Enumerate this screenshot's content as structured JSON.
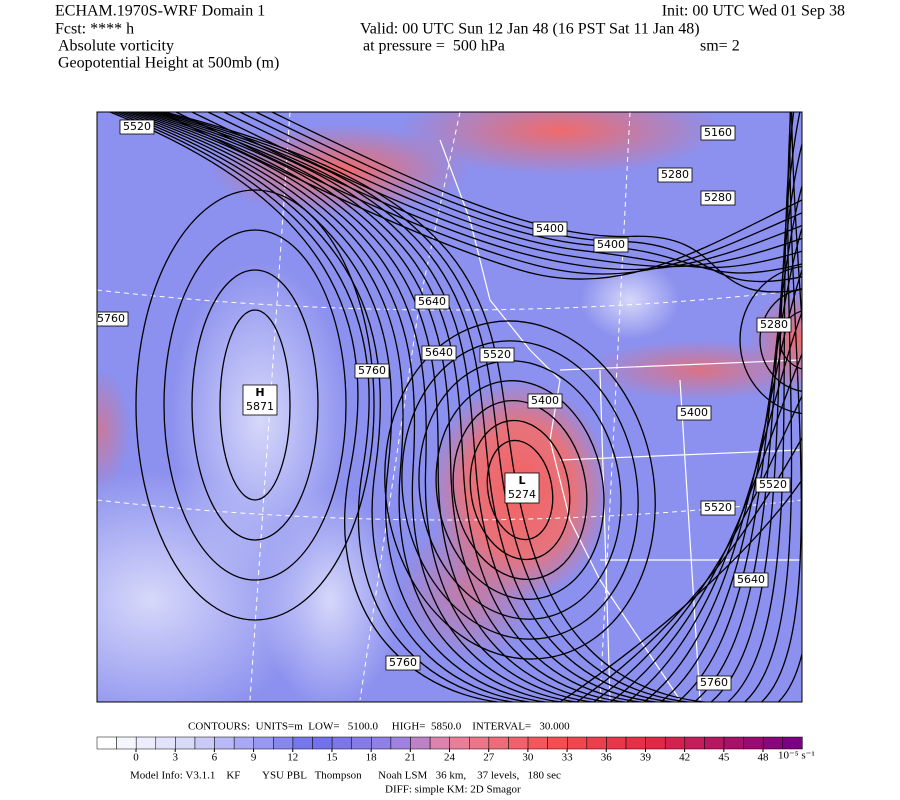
{
  "header": {
    "model": "ECHAM.1970S-WRF Domain 1",
    "forecast": "Fcst: **** h",
    "field1": "Absolute vorticity",
    "field2": "Geopotential Height at 500mb (m)",
    "init": "Init: 00 UTC Wed 01 Sep 38",
    "valid": "Valid: 00 UTC Sun 12 Jan 48 (16 PST Sat 11 Jan 48)",
    "pressure": "at pressure =  500 hPa",
    "smoothing": "sm= 2"
  },
  "map": {
    "contour_labels": [
      "5520",
      "5160",
      "5280",
      "5280",
      "5400",
      "5400",
      "5640",
      "5760",
      "5640",
      "5520",
      "5280",
      "5760",
      "5400",
      "5400",
      "5520",
      "5520",
      "5640",
      "5760",
      "5760"
    ],
    "high": {
      "letter": "H",
      "value": "5871"
    },
    "low": {
      "letter": "L",
      "value": "5274"
    }
  },
  "contours_info": "CONTOURS:  UNITS=m  LOW=   5100.0     HIGH=  5850.0    INTERVAL=   30.000",
  "colorbar": {
    "ticks": [
      0,
      3,
      6,
      9,
      12,
      15,
      18,
      21,
      24,
      27,
      30,
      33,
      36,
      39,
      42,
      45,
      48
    ],
    "units": "10⁻⁵ s⁻¹"
  },
  "footer": {
    "model_info": "Model Info: V3.1.1    KF        YSU PBL   Thompson      Noah LSM   36 km,    37 levels,   180 sec",
    "diff": "DIFF: simple KM: 2D Smagor"
  }
}
